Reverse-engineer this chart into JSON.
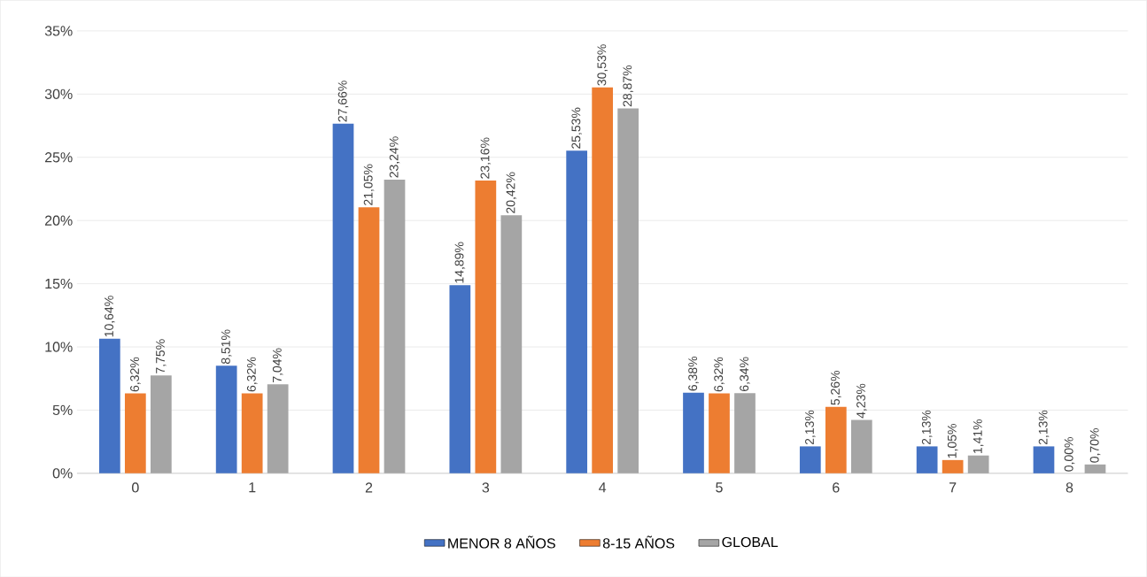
{
  "chart_data": {
    "type": "bar",
    "categories": [
      "0",
      "1",
      "2",
      "3",
      "4",
      "5",
      "6",
      "7",
      "8"
    ],
    "series": [
      {
        "name": "MENOR 8 AÑOS",
        "color": "#4472c4",
        "values": [
          10.64,
          8.51,
          27.66,
          14.89,
          25.53,
          6.38,
          2.13,
          2.13,
          2.13
        ],
        "value_labels": [
          "10,64%",
          "8,51%",
          "27,66%",
          "14,89%",
          "25,53%",
          "6,38%",
          "2,13%",
          "2,13%",
          "2,13%"
        ]
      },
      {
        "name": "8-15 AÑOS",
        "color": "#ed7d31",
        "values": [
          6.32,
          6.32,
          21.05,
          23.16,
          30.53,
          6.32,
          5.26,
          1.05,
          0.0
        ],
        "value_labels": [
          "6,32%",
          "6,32%",
          "21,05%",
          "23,16%",
          "30,53%",
          "6,32%",
          "5,26%",
          "1,05%",
          "0,00%"
        ]
      },
      {
        "name": "GLOBAL",
        "color": "#a5a5a5",
        "values": [
          7.75,
          7.04,
          23.24,
          20.42,
          28.87,
          6.34,
          4.23,
          1.41,
          0.7
        ],
        "value_labels": [
          "7,75%",
          "7,04%",
          "23,24%",
          "20,42%",
          "28,87%",
          "6,34%",
          "4,23%",
          "1,41%",
          "0,70%"
        ]
      }
    ],
    "ylim": [
      0,
      35
    ],
    "yticks": [
      {
        "value": 0,
        "label": "0%"
      },
      {
        "value": 5,
        "label": "5%"
      },
      {
        "value": 10,
        "label": "10%"
      },
      {
        "value": 15,
        "label": "15%"
      },
      {
        "value": 20,
        "label": "20%"
      },
      {
        "value": 25,
        "label": "25%"
      },
      {
        "value": 30,
        "label": "30%"
      },
      {
        "value": 35,
        "label": "35%"
      }
    ],
    "grid": "y",
    "legend": "bottom"
  }
}
